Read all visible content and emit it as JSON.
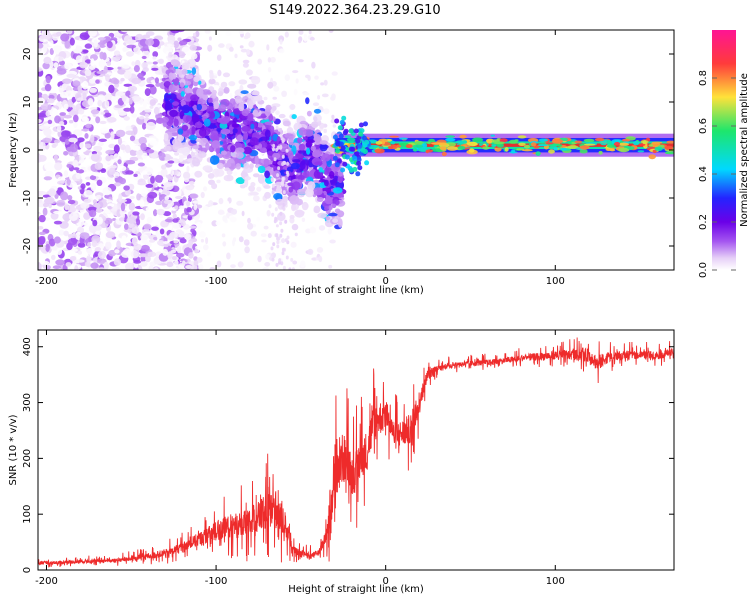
{
  "title": "S149.2022.364.23.29.G10",
  "colors": {
    "snr_line": "#ee2b2b",
    "dopp_band_core": "#e53030",
    "colormap": [
      "#ffffff",
      "#e6cff7",
      "#a455f0",
      "#6b00e8",
      "#2424ff",
      "#00d9ff",
      "#1ee66b",
      "#ffe23a",
      "#ff3b3b",
      "#ff1493"
    ]
  },
  "chart_data": [
    {
      "type": "heatmap",
      "title": "S149.2022.364.23.29.G10",
      "xlabel": "Height of straight line (km)",
      "ylabel": "Frequency (Hz)",
      "xlim": [
        -205,
        170
      ],
      "ylim": [
        -25,
        25
      ],
      "xticks": [
        -200,
        -100,
        0,
        100
      ],
      "yticks": [
        -20,
        -10,
        0,
        10,
        20
      ],
      "colorbar": {
        "label": "Normalized spectral amplitude",
        "range": [
          0,
          1
        ],
        "ticks": [
          "0.0",
          "0.2",
          "0.4",
          "0.6",
          "0.8"
        ]
      },
      "features": {
        "noise_region_x": [
          -205,
          -130
        ],
        "scintillation_region_x": [
          -130,
          -30
        ],
        "stable_band": {
          "x": [
            -30,
            170
          ],
          "frequency": 1,
          "amplitude": 0.85
        },
        "descending_track": [
          [
            -135,
            12
          ],
          [
            -100,
            5
          ],
          [
            -70,
            2
          ],
          [
            -55,
            -4
          ],
          [
            -45,
            0
          ],
          [
            -35,
            -7
          ]
        ]
      },
      "grid": false
    },
    {
      "type": "line",
      "xlabel": "Height of straight line (km)",
      "ylabel": "SNR (10 * v/v)",
      "xlim": [
        -205,
        170
      ],
      "ylim": [
        0,
        430
      ],
      "xticks": [
        -200,
        -100,
        0,
        100
      ],
      "yticks": [
        0,
        100,
        200,
        300,
        400
      ],
      "series": [
        {
          "x": [
            -205,
            -190,
            -175,
            -160,
            -150,
            -140,
            -130,
            -120,
            -110,
            -100,
            -95,
            -90,
            -85,
            -80,
            -75,
            -70,
            -65,
            -60,
            -55,
            -50,
            -45,
            -40,
            -35,
            -32,
            -30,
            -28,
            -25,
            -22,
            -20,
            -17,
            -15,
            -12,
            -10,
            -7,
            -5,
            -2,
            0,
            5,
            10,
            15,
            18,
            20,
            22,
            25,
            30,
            40,
            50,
            60,
            70,
            80,
            90,
            100,
            110,
            120,
            125,
            130,
            140,
            150,
            160,
            170
          ],
          "values": [
            12,
            14,
            16,
            17,
            20,
            25,
            30,
            40,
            55,
            70,
            75,
            80,
            80,
            85,
            95,
            105,
            110,
            90,
            35,
            30,
            28,
            30,
            60,
            130,
            180,
            190,
            200,
            195,
            170,
            180,
            200,
            210,
            230,
            260,
            270,
            275,
            280,
            240,
            245,
            255,
            280,
            300,
            330,
            350,
            360,
            368,
            370,
            372,
            375,
            380,
            382,
            385,
            385,
            385,
            370,
            380,
            385,
            385,
            385,
            390
          ],
          "noise": [
            6,
            6,
            7,
            7,
            9,
            11,
            14,
            18,
            25,
            35,
            40,
            45,
            48,
            50,
            55,
            65,
            70,
            55,
            15,
            12,
            10,
            12,
            25,
            90,
            100,
            100,
            90,
            85,
            75,
            75,
            75,
            70,
            70,
            70,
            65,
            60,
            55,
            50,
            50,
            55,
            50,
            40,
            30,
            20,
            12,
            10,
            10,
            10,
            10,
            12,
            14,
            16,
            18,
            25,
            30,
            20,
            15,
            15,
            15,
            14
          ]
        }
      ],
      "grid": false
    }
  ]
}
